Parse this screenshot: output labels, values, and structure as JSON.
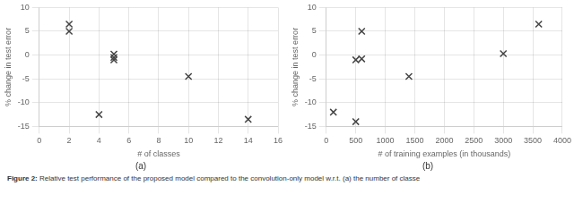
{
  "chart_data": [
    {
      "type": "scatter",
      "x": [
        2,
        2,
        4,
        5,
        5,
        5,
        10,
        14
      ],
      "values": [
        6.5,
        5.0,
        -12.5,
        0.2,
        -0.5,
        -1.0,
        -4.5,
        -13.5
      ],
      "x_label": "# of classes",
      "y_label": "% change in test error",
      "subtitle": "(a)",
      "xlim": [
        0,
        16
      ],
      "ylim": [
        -15,
        10
      ],
      "xticks": [
        0,
        2,
        4,
        6,
        8,
        10,
        12,
        14,
        16
      ],
      "yticks": [
        -15,
        -10,
        -5,
        0,
        5,
        10
      ],
      "color": "#444444",
      "marker": "x",
      "grid": true,
      "annotations": [
        "Figure 2:",
        "Relative test performance of the proposed model compared to the convolution-only model w.r.t. (a) the number of classe"
      ]
    },
    {
      "type": "scatter",
      "x": [
        120,
        500,
        500,
        600,
        600,
        1400,
        3000,
        3600
      ],
      "values": [
        -12.0,
        -1.0,
        -14.0,
        -0.8,
        5.0,
        -4.5,
        0.3,
        6.5
      ],
      "x_label": "# of training examples (in thousands)",
      "y_label": "% change in test error",
      "subtitle": "(b)",
      "xlim": [
        0,
        4000
      ],
      "ylim": [
        -15,
        10
      ],
      "xticks": [
        0,
        500,
        1000,
        1500,
        2000,
        2500,
        3000,
        3500,
        4000
      ],
      "yticks": [
        -15,
        -10,
        -5,
        0,
        5,
        10
      ],
      "color": "#444444",
      "marker": "x",
      "grid": true
    }
  ]
}
